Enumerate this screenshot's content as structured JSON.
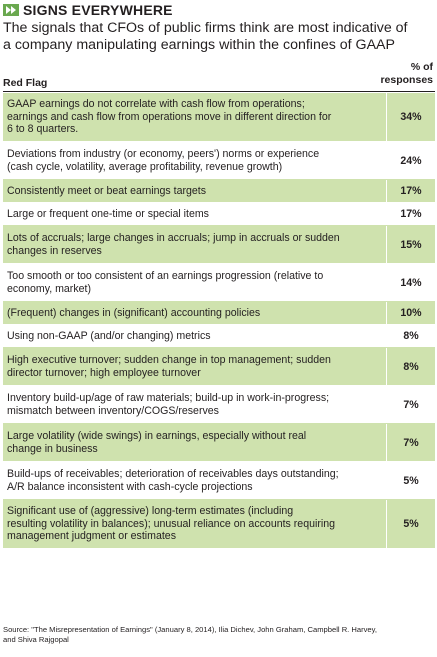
{
  "header": {
    "kicker": "SIGNS EVERYWHERE",
    "subtitle_line1": "The signals that CFOs of public firms think are most indicative of",
    "subtitle_line2": "a company manipulating earnings within the confines of GAAP"
  },
  "columns": {
    "flag": "Red Flag",
    "pct_line1": "% of",
    "pct_line2": "responses"
  },
  "colors": {
    "accent": "#6aa84f",
    "row_fill": "#cfe2ae",
    "text": "#231f20"
  },
  "chart_data": {
    "type": "table",
    "rows": [
      {
        "label_lines": [
          "GAAP earnings do not correlate with cash flow from operations;",
          "earnings and cash flow from operations move in different direction for",
          "6 to 8 quarters."
        ],
        "value": "34%"
      },
      {
        "label_lines": [
          "Deviations from industry (or economy, peers') norms or experience",
          "(cash cycle, volatility, average profitability, revenue growth)"
        ],
        "value": "24%"
      },
      {
        "label_lines": [
          "Consistently meet or beat earnings targets"
        ],
        "value": "17%"
      },
      {
        "label_lines": [
          "Large or frequent one-time or special items"
        ],
        "value": "17%"
      },
      {
        "label_lines": [
          "Lots of accruals; large changes in accruals; jump in accruals or sudden",
          "changes in reserves"
        ],
        "value": "15%"
      },
      {
        "label_lines": [
          "Too smooth or too consistent of an earnings progression (relative to",
          "economy, market)"
        ],
        "value": "14%"
      },
      {
        "label_lines": [
          "(Frequent) changes in (significant) accounting policies"
        ],
        "value": "10%"
      },
      {
        "label_lines": [
          "Using non-GAAP (and/or changing) metrics"
        ],
        "value": "8%"
      },
      {
        "label_lines": [
          "High executive turnover; sudden change in top management; sudden",
          "director turnover; high employee turnover"
        ],
        "value": "8%"
      },
      {
        "label_lines": [
          "Inventory build-up/age of raw materials; build-up in work-in-progress;",
          "mismatch between inventory/COGS/reserves"
        ],
        "value": "7%"
      },
      {
        "label_lines": [
          "Large volatility (wide swings) in earnings, especially without real",
          "change in business"
        ],
        "value": "7%"
      },
      {
        "label_lines": [
          "Build-ups of receivables; deterioration of receivables days outstanding;",
          "A/R balance inconsistent with cash-cycle projections"
        ],
        "value": "5%"
      },
      {
        "label_lines": [
          "Significant use of (aggressive) long-term estimates (including",
          "resulting volatility in balances); unusual reliance on accounts requiring",
          "management judgment or estimates"
        ],
        "value": "5%"
      }
    ]
  },
  "source": {
    "line1": "Source: \"The Misrepresentation of Earnings\" (January 8, 2014), Ilia Dichev, John Graham, Campbell R. Harvey,",
    "line2": "and Shiva Rajgopal"
  }
}
